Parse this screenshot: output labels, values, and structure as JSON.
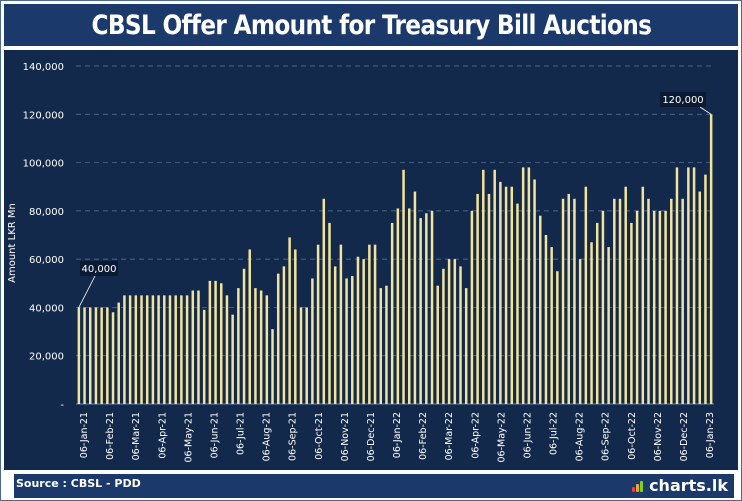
{
  "title": "CBSL Offer Amount for Treasury Bill Auctions",
  "source": "Source : CBSL - PDD",
  "brand": "charts.lk",
  "colors": {
    "background": "#13294b",
    "bar": "#f2e29a",
    "text": "#ffffff",
    "grid": "#5e7a9e",
    "callout": "#0b1a33"
  },
  "chart_data": {
    "type": "bar",
    "ylabel": "Amount LKR Mn",
    "ylim": [
      0,
      140000
    ],
    "yticks": [
      "-",
      "20,000",
      "40,000",
      "60,000",
      "80,000",
      "100,000",
      "120,000",
      "140,000"
    ],
    "xtick_labels": [
      "06-Jan-21",
      "06-Feb-21",
      "06-Mar-21",
      "06-Apr-21",
      "06-May-21",
      "06-Jun-21",
      "06-Jul-21",
      "06-Aug-21",
      "06-Sep-21",
      "06-Oct-21",
      "06-Nov-21",
      "06-Dec-21",
      "06-Jan-22",
      "06-Feb-22",
      "06-Mar-22",
      "06-Apr-22",
      "06-May-22",
      "06-Jun-22",
      "06-Jul-22",
      "06-Aug-22",
      "06-Sep-22",
      "06-Oct-22",
      "06-Nov-22",
      "06-Dec-22",
      "06-Jan-23"
    ],
    "annotations": [
      {
        "label": "40,000"
      },
      {
        "label": "120,000"
      }
    ],
    "values": [
      40000,
      40000,
      40000,
      40000,
      40000,
      40000,
      38000,
      42000,
      45000,
      45000,
      45000,
      45000,
      45000,
      45000,
      45000,
      45000,
      45000,
      45000,
      45000,
      45000,
      47000,
      47000,
      39000,
      51000,
      51000,
      50000,
      45000,
      37000,
      48000,
      56000,
      64000,
      48000,
      47000,
      45000,
      31000,
      54000,
      57000,
      69000,
      64000,
      40000,
      40000,
      52000,
      66000,
      85000,
      75000,
      57000,
      66000,
      52000,
      53000,
      61000,
      60000,
      66000,
      66000,
      48000,
      49000,
      75000,
      81000,
      97000,
      81000,
      88000,
      77000,
      79000,
      80000,
      49000,
      56000,
      60000,
      60000,
      57000,
      48000,
      80000,
      87000,
      97000,
      87000,
      97000,
      92000,
      90000,
      90000,
      83000,
      98000,
      98000,
      93000,
      78000,
      70000,
      65000,
      55000,
      85000,
      87000,
      85000,
      60000,
      90000,
      67000,
      75000,
      80000,
      65000,
      85000,
      85000,
      90000,
      75000,
      80000,
      90000,
      85000,
      80000,
      80000,
      80000,
      85000,
      98000,
      85000,
      98000,
      98000,
      88000,
      95000,
      120000
    ]
  }
}
